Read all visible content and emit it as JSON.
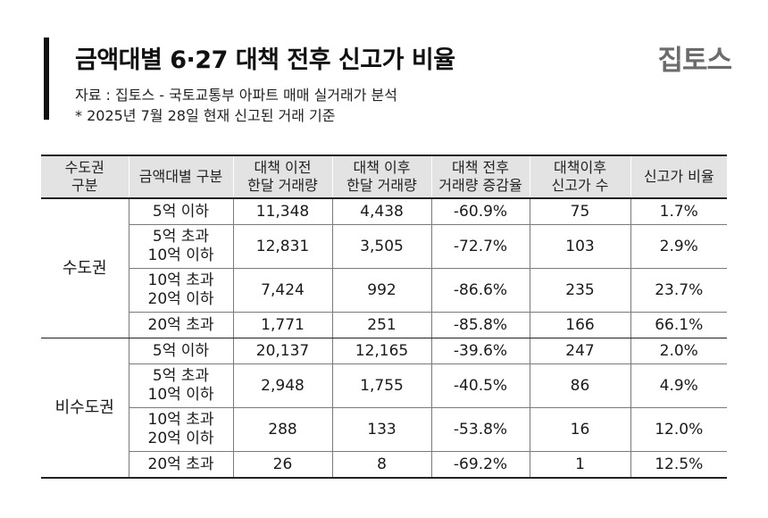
{
  "header": {
    "title": "금액대별 6·27 대책 전후 신고가 비율",
    "source": "자료 : 집토스 - 국토교통부 아파트 매매 실거래가 분석",
    "note": "* 2025년 7월 28일 현재 신고된 거래 기준",
    "logo": "집토스"
  },
  "colors": {
    "header_bg": "#e3e3e3",
    "accent_bar": "#111111",
    "logo": "#6b6b6b"
  },
  "table": {
    "columns": [
      "수도권\n구분",
      "금액대별 구분",
      "대책 이전\n한달 거래량",
      "대책 이후\n한달 거래량",
      "대책 전후\n거래량 증감율",
      "대책이후\n신고가 수",
      "신고가 비율"
    ],
    "groups": [
      {
        "region": "수도권",
        "rows": [
          [
            "5억 이하",
            "11,348",
            "4,438",
            "-60.9%",
            "75",
            "1.7%"
          ],
          [
            "5억 초과\n10억 이하",
            "12,831",
            "3,505",
            "-72.7%",
            "103",
            "2.9%"
          ],
          [
            "10억 초과\n20억 이하",
            "7,424",
            "992",
            "-86.6%",
            "235",
            "23.7%"
          ],
          [
            "20억 초과",
            "1,771",
            "251",
            "-85.8%",
            "166",
            "66.1%"
          ]
        ]
      },
      {
        "region": "비수도권",
        "rows": [
          [
            "5억 이하",
            "20,137",
            "12,165",
            "-39.6%",
            "247",
            "2.0%"
          ],
          [
            "5억 초과\n10억 이하",
            "2,948",
            "1,755",
            "-40.5%",
            "86",
            "4.9%"
          ],
          [
            "10억 초과\n20억 이하",
            "288",
            "133",
            "-53.8%",
            "16",
            "12.0%"
          ],
          [
            "20억 초과",
            "26",
            "8",
            "-69.2%",
            "1",
            "12.5%"
          ]
        ]
      }
    ]
  }
}
